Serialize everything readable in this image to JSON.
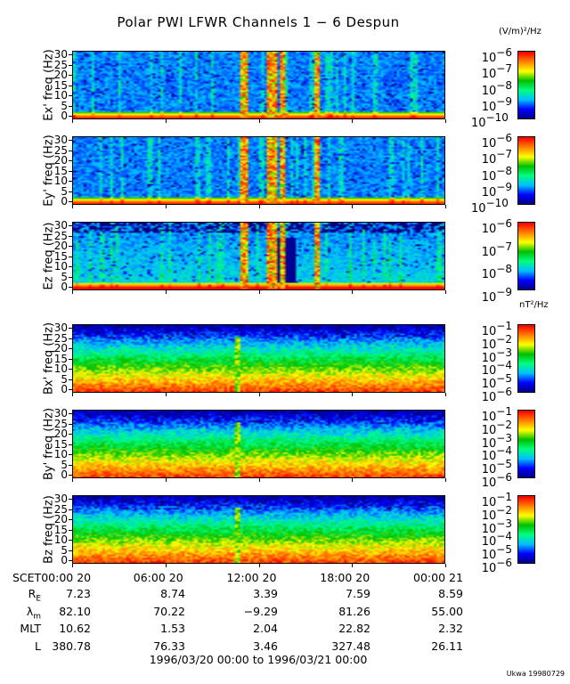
{
  "chart_data": {
    "type": "heatmap",
    "title": "Polar PWI LFWR Channels 1 − 6 Despun",
    "xlim": [
      "1996/03/20 00:00",
      "1996/03/21 00:00"
    ],
    "x_tick_labels": [
      "SCET00:00 20",
      "06:00 20",
      "12:00 20",
      "18:00 20",
      "00:00 21"
    ],
    "y_tick_labels": [
      "0",
      "5",
      "10",
      "15",
      "20",
      "25",
      "30"
    ],
    "ylim": [
      0,
      30
    ],
    "colormap": [
      "#000080",
      "#0000ff",
      "#00c0ff",
      "#00ff80",
      "#00c000",
      "#ffff00",
      "#ff8000",
      "#ff0000"
    ],
    "panels": [
      {
        "ylabel": "Ex' freq (Hz)",
        "unit": "(V/m)²/Hz",
        "cbar_exponents": [
          "−6",
          "−7",
          "−8",
          "−9",
          "−10"
        ],
        "crange": [
          -10.2,
          -6
        ]
      },
      {
        "ylabel": "Ey' freq (Hz)",
        "unit": "",
        "cbar_exponents": [
          "−6",
          "−7",
          "−8",
          "−9",
          "−10"
        ],
        "crange": [
          -10.2,
          -6
        ]
      },
      {
        "ylabel": "Ez freq (Hz)",
        "unit": "",
        "cbar_exponents": [
          "−6",
          "−7",
          "−8",
          "−9"
        ],
        "crange": [
          -9,
          -6
        ]
      },
      {
        "ylabel": "Bx' freq (Hz)",
        "unit": "nT²/Hz",
        "cbar_exponents": [
          "−1",
          "−2",
          "−3",
          "−4",
          "−5",
          "−6"
        ],
        "crange": [
          -6.2,
          -1
        ]
      },
      {
        "ylabel": "By' freq (Hz)",
        "unit": "",
        "cbar_exponents": [
          "−1",
          "−2",
          "−3",
          "−4",
          "−5",
          "−6"
        ],
        "crange": [
          -6.2,
          -1
        ]
      },
      {
        "ylabel": "Bz freq (Hz)",
        "unit": "",
        "cbar_exponents": [
          "−1",
          "−2",
          "−3",
          "−4",
          "−5",
          "−6"
        ],
        "crange": [
          -6.2,
          -1
        ]
      }
    ],
    "ephemeris": {
      "rows": [
        {
          "label": "R",
          "sub": "E",
          "values": [
            "7.23",
            "8.74",
            "3.39",
            "7.59",
            "8.59"
          ]
        },
        {
          "label": "λ",
          "sub": "m",
          "values": [
            "82.10",
            "70.22",
            "−9.29",
            "81.26",
            "55.00"
          ]
        },
        {
          "label": "MLT",
          "sub": "",
          "values": [
            "10.62",
            "1.53",
            "2.04",
            "22.82",
            "2.32"
          ]
        },
        {
          "label": "L",
          "sub": "",
          "values": [
            "380.78",
            "76.33",
            "3.46",
            "327.48",
            "26.11"
          ]
        }
      ]
    },
    "time_range": "1996/03/20 00:00 to 1996/03/21 00:00",
    "credit": "Ukwa 19980729"
  }
}
